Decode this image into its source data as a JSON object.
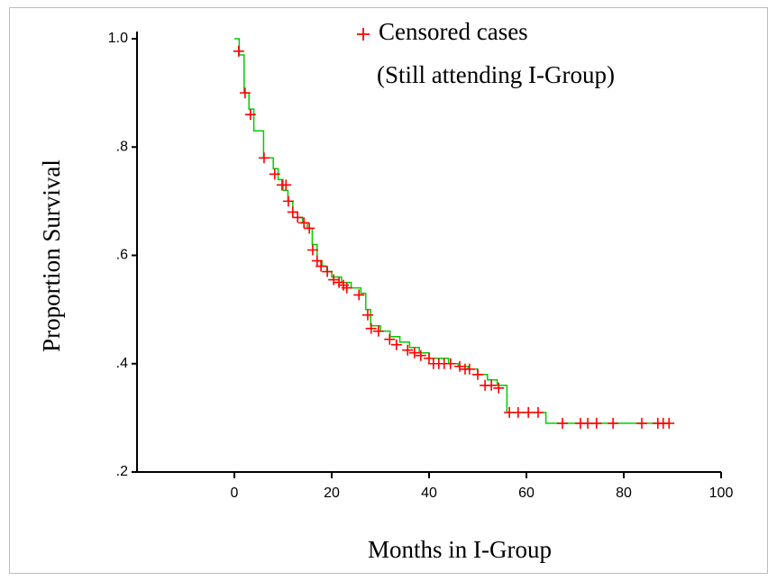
{
  "chart_data": {
    "type": "line",
    "x_label": "Months in I-Group",
    "y_label": "Proportion Survival",
    "legend_note": "(Still attending I-Group)",
    "xlim": [
      -20,
      100
    ],
    "xticks": [
      0,
      20,
      40,
      60,
      80,
      100
    ],
    "ylim": [
      0.2,
      1.0
    ],
    "yticks": [
      {
        "value": 0.2,
        "label": ".2"
      },
      {
        "value": 0.4,
        "label": ".4"
      },
      {
        "value": 0.6,
        "label": ".6"
      },
      {
        "value": 0.8,
        "label": ".8"
      },
      {
        "value": 1.0,
        "label": "1.0"
      }
    ],
    "step_curve": {
      "color": "#00cc00",
      "x": [
        0,
        1,
        2,
        3,
        4,
        6,
        8,
        9,
        10,
        11,
        12,
        13,
        14,
        15,
        16,
        17,
        18,
        19,
        20,
        22,
        24,
        26,
        27,
        28,
        30,
        32,
        34,
        36,
        38,
        40,
        44,
        46,
        48,
        50,
        52,
        54,
        56,
        64,
        89.3
      ],
      "values": [
        1.0,
        0.97,
        0.9,
        0.87,
        0.83,
        0.78,
        0.76,
        0.74,
        0.72,
        0.7,
        0.68,
        0.67,
        0.66,
        0.65,
        0.62,
        0.59,
        0.58,
        0.57,
        0.56,
        0.55,
        0.54,
        0.53,
        0.5,
        0.47,
        0.46,
        0.45,
        0.44,
        0.43,
        0.42,
        0.41,
        0.4,
        0.395,
        0.39,
        0.38,
        0.37,
        0.36,
        0.31,
        0.29,
        0.29
      ]
    },
    "series": [
      {
        "name": "Censored cases",
        "color": "#ff0000",
        "x": [
          0.9,
          2.2,
          3.3,
          6.1,
          8.3,
          9.8,
          10.6,
          11.1,
          12.0,
          13.0,
          14.3,
          15.4,
          16.1,
          17.0,
          17.8,
          19.1,
          20.4,
          21.5,
          22.4,
          23.1,
          25.6,
          27.4,
          28.1,
          29.6,
          31.9,
          33.3,
          35.6,
          37.0,
          38.3,
          40.0,
          40.9,
          42.0,
          43.1,
          44.4,
          46.3,
          47.4,
          48.3,
          50.0,
          51.5,
          52.8,
          54.3,
          56.5,
          58.3,
          60.4,
          62.4,
          67.4,
          71.1,
          72.6,
          74.4,
          77.8,
          83.7,
          87.0,
          88.1,
          89.3
        ],
        "values": [
          0.977,
          0.9,
          0.86,
          0.78,
          0.75,
          0.73,
          0.73,
          0.7,
          0.68,
          0.67,
          0.66,
          0.65,
          0.61,
          0.59,
          0.58,
          0.57,
          0.555,
          0.55,
          0.545,
          0.54,
          0.527,
          0.49,
          0.465,
          0.46,
          0.445,
          0.435,
          0.425,
          0.42,
          0.415,
          0.41,
          0.4,
          0.4,
          0.4,
          0.4,
          0.395,
          0.39,
          0.39,
          0.38,
          0.36,
          0.36,
          0.355,
          0.31,
          0.31,
          0.31,
          0.31,
          0.29,
          0.29,
          0.29,
          0.29,
          0.29,
          0.29,
          0.29,
          0.29,
          0.29
        ]
      }
    ]
  }
}
